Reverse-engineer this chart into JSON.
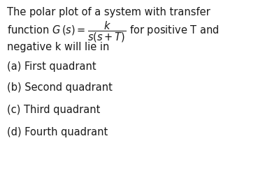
{
  "background_color": "#ffffff",
  "text_color": "#1a1a1a",
  "line1": "The polar plot of a system with transfer",
  "line3": "negative k will lie in",
  "options": [
    "(a) First quadrant",
    "(b) Second quadrant",
    "(c) Third quadrant",
    "(d) Fourth quadrant"
  ],
  "font_size_text": 10.5,
  "fig_width": 3.69,
  "fig_height": 2.68,
  "dpi": 100
}
